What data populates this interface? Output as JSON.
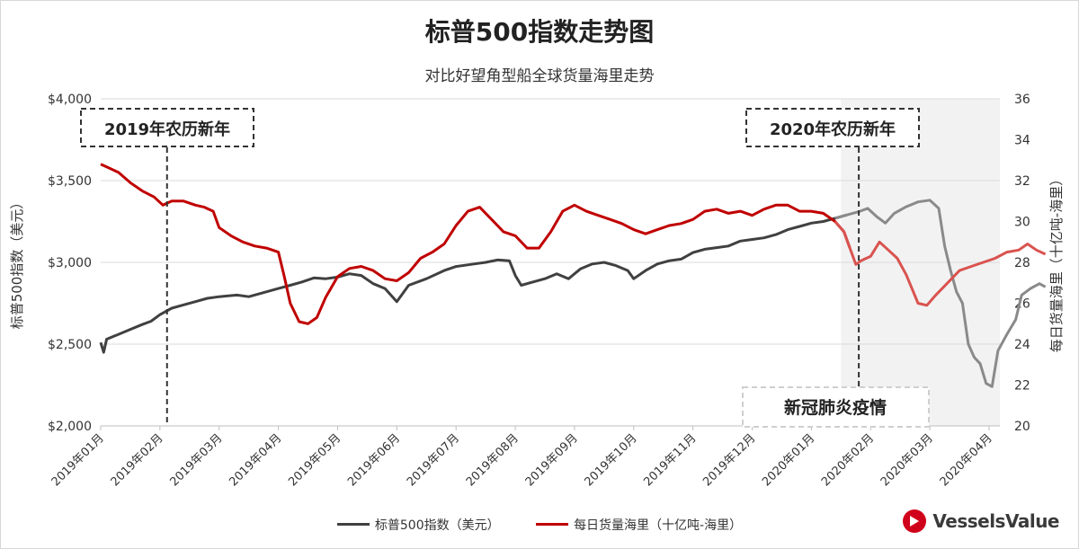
{
  "title": "标普500指数走势图",
  "subtitle": "对比好望角型船全球货量海里走势",
  "brand": {
    "name": "VesselsValue",
    "color": "#d0021b"
  },
  "chart_data": {
    "type": "line",
    "x_labels": [
      "2019年01月",
      "2019年02月",
      "2019年03月",
      "2019年04月",
      "2019年05月",
      "2019年06月",
      "2019年07月",
      "2019年08月",
      "2019年09月",
      "2019年10月",
      "2019年11月",
      "2019年12月",
      "2020年01月",
      "2020年02月",
      "2020年03月",
      "2020年04月"
    ],
    "y_left": {
      "label": "标普500指数（美元）",
      "ticks": [
        "$2,000",
        "$2,500",
        "$3,000",
        "$3,500",
        "$4,000"
      ],
      "range": [
        2000,
        4000
      ]
    },
    "y_right": {
      "label": "每日货量海里（十亿吨-海里）",
      "ticks": [
        "20",
        "22",
        "24",
        "26",
        "28",
        "30",
        "32",
        "34",
        "36"
      ],
      "range": [
        20,
        36
      ]
    },
    "annotations": [
      {
        "text": "2019年农历新年",
        "month": 1.12
      },
      {
        "text": "2020年农历新年",
        "month": 12.8
      }
    ],
    "shaded_region": {
      "label": "新冠肺炎疫情",
      "from_month": 12.5,
      "to_month": 15.55
    },
    "series": [
      {
        "name": "标普500指数（美元）",
        "axis": "left",
        "color": "#404040",
        "faded_color": "#8a8a8a",
        "points": [
          [
            0,
            2510
          ],
          [
            0.05,
            2450
          ],
          [
            0.1,
            2530
          ],
          [
            0.3,
            2560
          ],
          [
            0.5,
            2590
          ],
          [
            0.7,
            2620
          ],
          [
            0.85,
            2640
          ],
          [
            1.0,
            2680
          ],
          [
            1.2,
            2720
          ],
          [
            1.4,
            2740
          ],
          [
            1.6,
            2760
          ],
          [
            1.8,
            2780
          ],
          [
            2.0,
            2790
          ],
          [
            2.3,
            2800
          ],
          [
            2.5,
            2790
          ],
          [
            2.7,
            2810
          ],
          [
            3.0,
            2840
          ],
          [
            3.2,
            2860
          ],
          [
            3.4,
            2880
          ],
          [
            3.6,
            2905
          ],
          [
            3.8,
            2900
          ],
          [
            4.0,
            2910
          ],
          [
            4.2,
            2930
          ],
          [
            4.4,
            2920
          ],
          [
            4.6,
            2870
          ],
          [
            4.8,
            2840
          ],
          [
            5.0,
            2760
          ],
          [
            5.2,
            2860
          ],
          [
            5.5,
            2900
          ],
          [
            5.8,
            2950
          ],
          [
            6.0,
            2975
          ],
          [
            6.3,
            2990
          ],
          [
            6.5,
            3000
          ],
          [
            6.7,
            3015
          ],
          [
            6.9,
            3010
          ],
          [
            7.0,
            2920
          ],
          [
            7.1,
            2860
          ],
          [
            7.3,
            2880
          ],
          [
            7.5,
            2900
          ],
          [
            7.7,
            2930
          ],
          [
            7.9,
            2900
          ],
          [
            8.1,
            2960
          ],
          [
            8.3,
            2990
          ],
          [
            8.5,
            3000
          ],
          [
            8.7,
            2980
          ],
          [
            8.9,
            2950
          ],
          [
            9.0,
            2900
          ],
          [
            9.2,
            2950
          ],
          [
            9.4,
            2990
          ],
          [
            9.6,
            3010
          ],
          [
            9.8,
            3020
          ],
          [
            10.0,
            3060
          ],
          [
            10.2,
            3080
          ],
          [
            10.4,
            3090
          ],
          [
            10.6,
            3100
          ],
          [
            10.8,
            3130
          ],
          [
            11.0,
            3140
          ],
          [
            11.2,
            3150
          ],
          [
            11.4,
            3170
          ],
          [
            11.6,
            3200
          ],
          [
            11.8,
            3220
          ],
          [
            12.0,
            3240
          ],
          [
            12.2,
            3250
          ],
          [
            12.4,
            3270
          ],
          [
            12.6,
            3290
          ],
          [
            12.8,
            3310
          ],
          [
            12.95,
            3330
          ],
          [
            13.1,
            3280
          ],
          [
            13.25,
            3240
          ],
          [
            13.4,
            3300
          ],
          [
            13.6,
            3340
          ],
          [
            13.8,
            3370
          ],
          [
            14.0,
            3380
          ],
          [
            14.15,
            3330
          ],
          [
            14.25,
            3100
          ],
          [
            14.35,
            2950
          ],
          [
            14.45,
            2820
          ],
          [
            14.55,
            2750
          ],
          [
            14.65,
            2500
          ],
          [
            14.75,
            2420
          ],
          [
            14.85,
            2380
          ],
          [
            14.95,
            2260
          ],
          [
            15.05,
            2240
          ],
          [
            15.15,
            2460
          ],
          [
            15.3,
            2560
          ],
          [
            15.45,
            2650
          ],
          [
            15.55,
            2800
          ],
          [
            15.7,
            2840
          ],
          [
            15.85,
            2870
          ],
          [
            15.95,
            2850
          ]
        ]
      },
      {
        "name": "每日货量海里（十亿吨-海里）",
        "axis": "right",
        "color": "#c00000",
        "faded_color": "#d9534f",
        "points": [
          [
            0,
            32.8
          ],
          [
            0.15,
            32.6
          ],
          [
            0.3,
            32.4
          ],
          [
            0.5,
            31.9
          ],
          [
            0.7,
            31.5
          ],
          [
            0.9,
            31.2
          ],
          [
            1.05,
            30.8
          ],
          [
            1.2,
            31.0
          ],
          [
            1.4,
            31.0
          ],
          [
            1.6,
            30.8
          ],
          [
            1.75,
            30.7
          ],
          [
            1.9,
            30.5
          ],
          [
            2.0,
            29.7
          ],
          [
            2.2,
            29.3
          ],
          [
            2.4,
            29.0
          ],
          [
            2.6,
            28.8
          ],
          [
            2.8,
            28.7
          ],
          [
            3.0,
            28.5
          ],
          [
            3.1,
            27.3
          ],
          [
            3.2,
            26.0
          ],
          [
            3.35,
            25.1
          ],
          [
            3.5,
            25.0
          ],
          [
            3.65,
            25.3
          ],
          [
            3.8,
            26.3
          ],
          [
            4.0,
            27.3
          ],
          [
            4.2,
            27.7
          ],
          [
            4.4,
            27.8
          ],
          [
            4.6,
            27.6
          ],
          [
            4.8,
            27.2
          ],
          [
            5.0,
            27.1
          ],
          [
            5.2,
            27.5
          ],
          [
            5.4,
            28.2
          ],
          [
            5.6,
            28.5
          ],
          [
            5.8,
            28.9
          ],
          [
            6.0,
            29.8
          ],
          [
            6.2,
            30.5
          ],
          [
            6.4,
            30.7
          ],
          [
            6.6,
            30.1
          ],
          [
            6.8,
            29.5
          ],
          [
            7.0,
            29.3
          ],
          [
            7.2,
            28.7
          ],
          [
            7.4,
            28.7
          ],
          [
            7.6,
            29.5
          ],
          [
            7.8,
            30.5
          ],
          [
            8.0,
            30.8
          ],
          [
            8.2,
            30.5
          ],
          [
            8.4,
            30.3
          ],
          [
            8.6,
            30.1
          ],
          [
            8.8,
            29.9
          ],
          [
            9.0,
            29.6
          ],
          [
            9.2,
            29.4
          ],
          [
            9.4,
            29.6
          ],
          [
            9.6,
            29.8
          ],
          [
            9.8,
            29.9
          ],
          [
            10.0,
            30.1
          ],
          [
            10.2,
            30.5
          ],
          [
            10.4,
            30.6
          ],
          [
            10.6,
            30.4
          ],
          [
            10.8,
            30.5
          ],
          [
            11.0,
            30.3
          ],
          [
            11.2,
            30.6
          ],
          [
            11.4,
            30.8
          ],
          [
            11.6,
            30.8
          ],
          [
            11.8,
            30.5
          ],
          [
            12.0,
            30.5
          ],
          [
            12.2,
            30.4
          ],
          [
            12.4,
            30.0
          ],
          [
            12.55,
            29.5
          ],
          [
            12.65,
            28.7
          ],
          [
            12.75,
            27.9
          ],
          [
            12.85,
            28.1
          ],
          [
            13.0,
            28.3
          ],
          [
            13.15,
            29.0
          ],
          [
            13.3,
            28.6
          ],
          [
            13.45,
            28.2
          ],
          [
            13.6,
            27.4
          ],
          [
            13.7,
            26.7
          ],
          [
            13.8,
            26.0
          ],
          [
            13.95,
            25.9
          ],
          [
            14.1,
            26.4
          ],
          [
            14.3,
            27.0
          ],
          [
            14.5,
            27.6
          ],
          [
            14.7,
            27.8
          ],
          [
            14.9,
            28.0
          ],
          [
            15.1,
            28.2
          ],
          [
            15.3,
            28.5
          ],
          [
            15.5,
            28.6
          ],
          [
            15.65,
            28.9
          ],
          [
            15.8,
            28.6
          ],
          [
            15.95,
            28.4
          ]
        ]
      }
    ]
  },
  "legend": {
    "items": [
      {
        "label": "标普500指数（美元）",
        "color": "#404040"
      },
      {
        "label": "每日货量海里（十亿吨-海里）",
        "color": "#c00000"
      }
    ]
  }
}
